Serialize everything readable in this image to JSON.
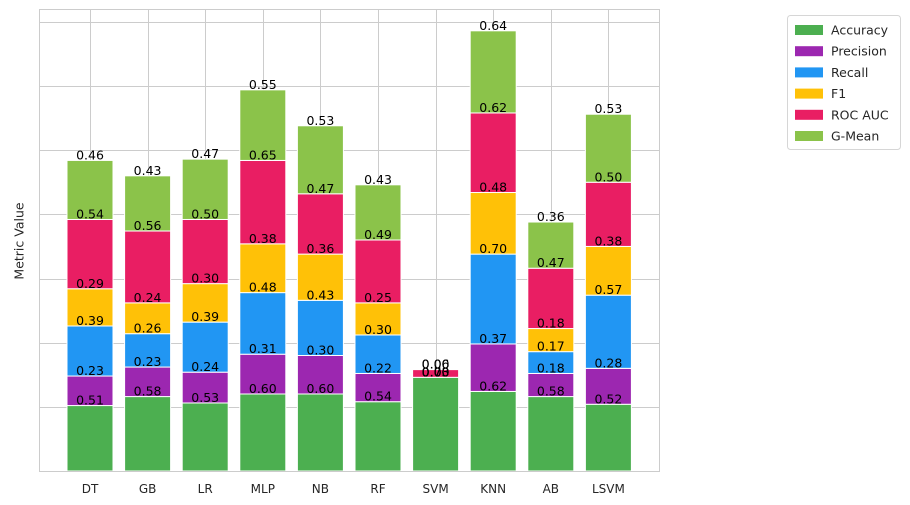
{
  "chart_data": {
    "type": "bar",
    "stacked": true,
    "ylabel": "Metric Value",
    "xlabel": "",
    "title": "",
    "grid": true,
    "legend_position": "upper right outside",
    "categories": [
      "DT",
      "GB",
      "LR",
      "MLP",
      "NB",
      "RF",
      "SVM",
      "KNN",
      "AB",
      "LSVM"
    ],
    "series": [
      {
        "name": "Accuracy",
        "color": "#4caf50",
        "values": [
          0.51,
          0.58,
          0.53,
          0.6,
          0.6,
          0.54,
          0.73,
          0.62,
          0.58,
          0.52
        ]
      },
      {
        "name": "Precision",
        "color": "#9c27b0",
        "values": [
          0.23,
          0.23,
          0.24,
          0.31,
          0.3,
          0.22,
          0.0,
          0.37,
          0.18,
          0.28
        ]
      },
      {
        "name": "Recall",
        "color": "#2196f3",
        "values": [
          0.39,
          0.26,
          0.39,
          0.48,
          0.43,
          0.3,
          0.0,
          0.7,
          0.17,
          0.57
        ]
      },
      {
        "name": "F1",
        "color": "#ffc107",
        "values": [
          0.29,
          0.24,
          0.3,
          0.38,
          0.36,
          0.25,
          0.0,
          0.48,
          0.18,
          0.38
        ]
      },
      {
        "name": "ROC AUC",
        "color": "#e91e63",
        "values": [
          0.54,
          0.56,
          0.5,
          0.65,
          0.47,
          0.49,
          0.06,
          0.62,
          0.47,
          0.5
        ]
      },
      {
        "name": "G-Mean",
        "color": "#8bc34a",
        "values": [
          0.46,
          0.43,
          0.47,
          0.55,
          0.53,
          0.43,
          0.0,
          0.64,
          0.36,
          0.53
        ]
      }
    ],
    "ylim": [
      0,
      3.6
    ],
    "yticks": [
      0.5,
      1.0,
      1.5,
      2.0,
      2.5,
      3.0,
      3.5
    ],
    "show_ytick_labels": false
  }
}
